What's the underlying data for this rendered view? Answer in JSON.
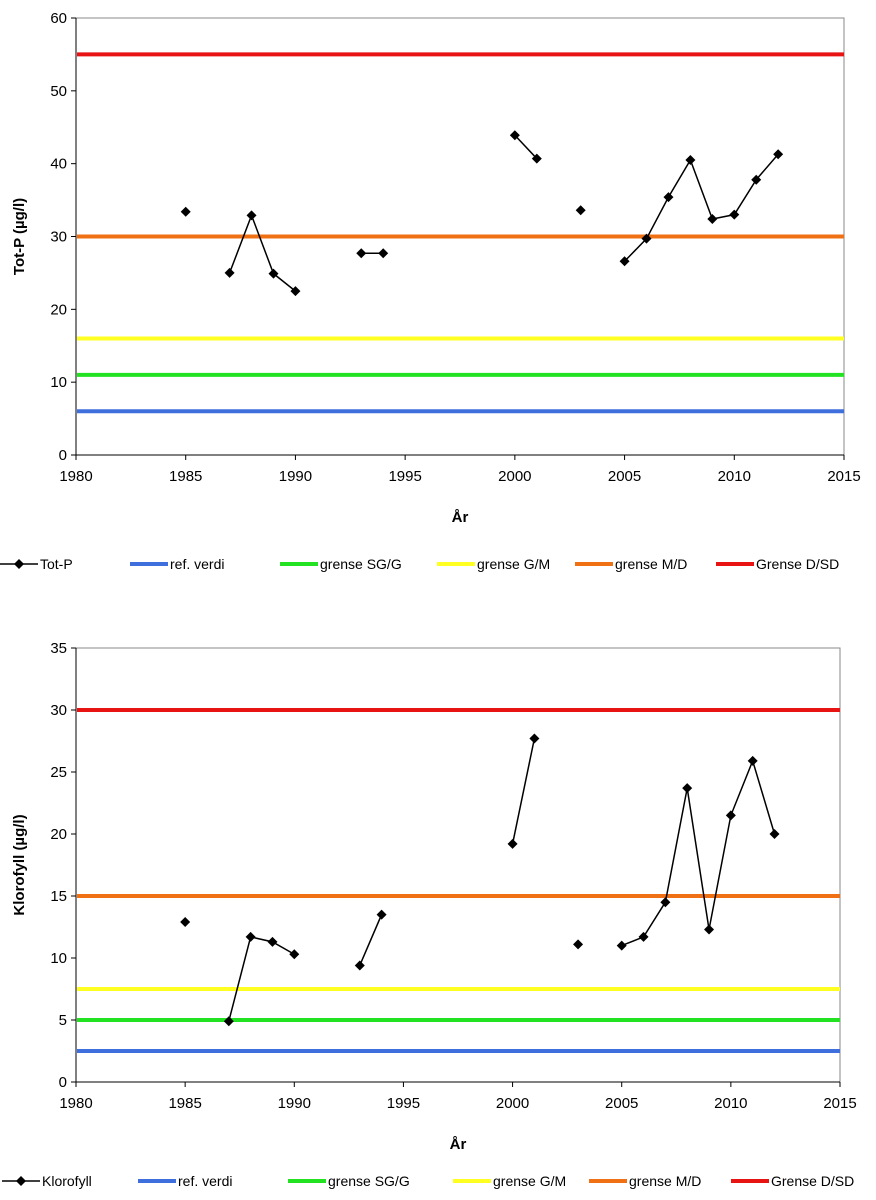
{
  "chart_data": [
    {
      "type": "line",
      "xlabel": "År",
      "ylabel": "Tot-P (µg/l)",
      "xlim": [
        1980,
        2015
      ],
      "ylim": [
        0,
        60
      ],
      "xticks": [
        "1980",
        "1985",
        "1990",
        "1995",
        "2000",
        "2005",
        "2010",
        "2015"
      ],
      "yticks": [
        "0",
        "10",
        "20",
        "30",
        "40",
        "50",
        "60"
      ],
      "grid": false,
      "legend_position": "bottom",
      "series": [
        {
          "name": "Tot-P",
          "color": "#000000",
          "marker": "diamond",
          "points": [
            [
              1985,
              33.4
            ],
            [
              1987,
              25.0
            ],
            [
              1988,
              32.9
            ],
            [
              1989,
              24.9
            ],
            [
              1990,
              22.5
            ],
            [
              1993,
              27.7
            ],
            [
              1994,
              27.7
            ],
            [
              2000,
              43.9
            ],
            [
              2001,
              40.7
            ],
            [
              2003,
              33.6
            ],
            [
              2005,
              26.6
            ],
            [
              2006,
              29.7
            ],
            [
              2007,
              35.4
            ],
            [
              2008,
              40.5
            ],
            [
              2009,
              32.4
            ],
            [
              2010,
              33.0
            ],
            [
              2011,
              37.8
            ],
            [
              2012,
              41.3
            ]
          ],
          "segments": [
            [
              1,
              2,
              3,
              4
            ],
            [
              5,
              6
            ],
            [
              7,
              8
            ],
            [
              10,
              11,
              12,
              13,
              14,
              15,
              16,
              17
            ]
          ]
        }
      ],
      "thresholds": [
        {
          "name": "ref. verdi",
          "value": 6,
          "color": "#3f6fdc"
        },
        {
          "name": "grense SG/G",
          "value": 11,
          "color": "#22e222"
        },
        {
          "name": "grense G/M",
          "value": 16,
          "color": "#ffff22"
        },
        {
          "name": "grense M/D",
          "value": 30,
          "color": "#f07014"
        },
        {
          "name": "Grense D/SD",
          "value": 55,
          "color": "#e81414"
        }
      ]
    },
    {
      "type": "line",
      "xlabel": "År",
      "ylabel": "Klorofyll (µg/l)",
      "xlim": [
        1980,
        2015
      ],
      "ylim": [
        0,
        35
      ],
      "xticks": [
        "1980",
        "1985",
        "1990",
        "1995",
        "2000",
        "2005",
        "2010",
        "2015"
      ],
      "yticks": [
        "0",
        "5",
        "10",
        "15",
        "20",
        "25",
        "30",
        "35"
      ],
      "grid": false,
      "legend_position": "bottom",
      "series": [
        {
          "name": "Klorofyll",
          "color": "#000000",
          "marker": "diamond",
          "points": [
            [
              1985,
              12.9
            ],
            [
              1987,
              4.9
            ],
            [
              1988,
              11.7
            ],
            [
              1989,
              11.3
            ],
            [
              1990,
              10.3
            ],
            [
              1993,
              9.4
            ],
            [
              1994,
              13.5
            ],
            [
              2000,
              19.2
            ],
            [
              2001,
              27.7
            ],
            [
              2003,
              11.1
            ],
            [
              2005,
              11.0
            ],
            [
              2006,
              11.7
            ],
            [
              2007,
              14.5
            ],
            [
              2008,
              23.7
            ],
            [
              2009,
              12.3
            ],
            [
              2010,
              21.5
            ],
            [
              2011,
              25.9
            ],
            [
              2012,
              20.0
            ]
          ],
          "segments": [
            [
              1,
              2,
              3,
              4
            ],
            [
              5,
              6
            ],
            [
              7,
              8
            ],
            [
              10,
              11,
              12,
              13,
              14,
              15,
              16,
              17
            ]
          ]
        }
      ],
      "thresholds": [
        {
          "name": "ref. verdi",
          "value": 2.5,
          "color": "#3f6fdc"
        },
        {
          "name": "grense SG/G",
          "value": 5,
          "color": "#22e222"
        },
        {
          "name": "grense G/M",
          "value": 7.5,
          "color": "#ffff22"
        },
        {
          "name": "grense M/D",
          "value": 15,
          "color": "#f07014"
        },
        {
          "name": "Grense D/SD",
          "value": 30,
          "color": "#e81414"
        }
      ]
    }
  ]
}
